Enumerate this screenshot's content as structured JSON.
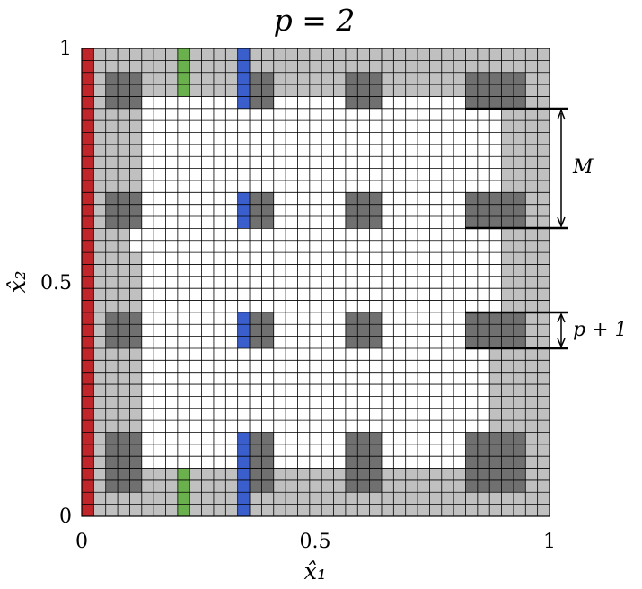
{
  "title": "p = 2",
  "xlabel": "x̂₁",
  "ylabel": "x̂₂",
  "xticks": [
    "0",
    "0.5",
    "1"
  ],
  "yticks": [
    "0",
    "0.5",
    "1"
  ],
  "annotations": {
    "m_label": "M",
    "p1_label": "p + 1"
  },
  "grid": {
    "columns": 39,
    "rows": 39
  },
  "colors": {
    "grid_line": "#000000",
    "light_gray": "#c0c0c0",
    "dark_gray": "#707070",
    "red": "#c0252a",
    "green": "#6ab04c",
    "blue": "#3a5fcd",
    "white": "#ffffff"
  }
}
